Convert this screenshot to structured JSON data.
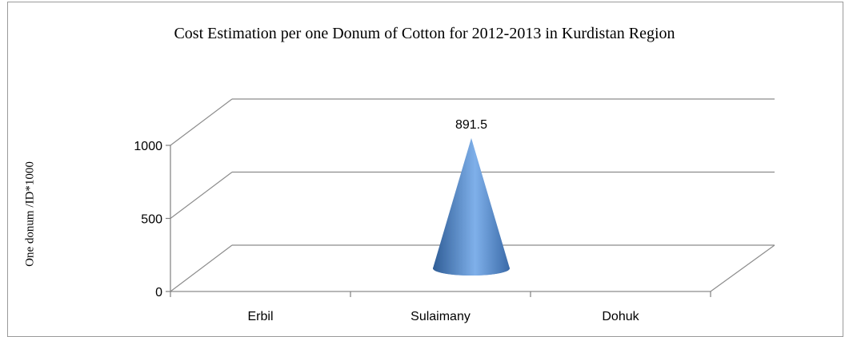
{
  "chart_data": {
    "type": "bar",
    "shape": "cone-3d",
    "title": "Cost Estimation per one Donum of Cotton for 2012-2013 in Kurdistan Region",
    "xlabel": "",
    "ylabel": "One donum /ID*1000",
    "categories": [
      "Erbil",
      "Sulaimany",
      "Dohuk"
    ],
    "values": [
      null,
      891.5,
      null
    ],
    "data_labels": [
      "",
      "891.5",
      ""
    ],
    "yticks": [
      0,
      500,
      1000
    ],
    "ylim": [
      0,
      1000
    ],
    "grid": true,
    "legend": "none",
    "colors": {
      "cone": "#4f81bd",
      "grid": "#8c8c8c",
      "axis": "#808080"
    }
  }
}
